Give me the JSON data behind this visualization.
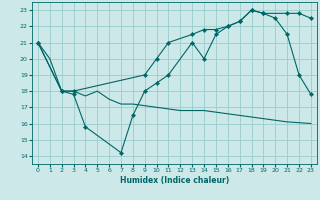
{
  "xlabel": "Humidex (Indice chaleur)",
  "bg_color": "#cce8e8",
  "grid_color": "#99cccc",
  "line_color": "#006666",
  "xlim": [
    -0.5,
    23.5
  ],
  "ylim": [
    13.5,
    23.5
  ],
  "xticks": [
    0,
    1,
    2,
    3,
    4,
    5,
    6,
    7,
    8,
    9,
    10,
    11,
    12,
    13,
    14,
    15,
    16,
    17,
    18,
    19,
    20,
    21,
    22,
    23
  ],
  "yticks": [
    14,
    15,
    16,
    17,
    18,
    19,
    20,
    21,
    22,
    23
  ],
  "line1_x": [
    0,
    1,
    2,
    3,
    4,
    5,
    6,
    7,
    8,
    9,
    10,
    11,
    12,
    13,
    14,
    15,
    16,
    17,
    18,
    19,
    20,
    21,
    22,
    23
  ],
  "line1_y": [
    21,
    20,
    18,
    18,
    17.7,
    18,
    17.5,
    17.2,
    17.2,
    17.1,
    17.0,
    16.9,
    16.8,
    16.8,
    16.8,
    16.7,
    16.6,
    16.5,
    16.4,
    16.3,
    16.2,
    16.1,
    16.05,
    16.0
  ],
  "line2_x": [
    0,
    2,
    3,
    4,
    7,
    8,
    9,
    10,
    11,
    13,
    14,
    15,
    16,
    17,
    18,
    19,
    20,
    21,
    22,
    23
  ],
  "line2_y": [
    21,
    18,
    17.8,
    15.8,
    14.2,
    16.5,
    18.0,
    18.5,
    19.0,
    21.0,
    20.0,
    21.5,
    22.0,
    22.3,
    23.0,
    22.8,
    22.5,
    21.5,
    19.0,
    17.8
  ],
  "line3_x": [
    0,
    2,
    3,
    9,
    10,
    11,
    13,
    14,
    15,
    16,
    17,
    18,
    19,
    21,
    22,
    23
  ],
  "line3_y": [
    21,
    18,
    18,
    19.0,
    20.0,
    21.0,
    21.5,
    21.8,
    21.8,
    22.0,
    22.3,
    23.0,
    22.8,
    22.8,
    22.8,
    22.5
  ]
}
